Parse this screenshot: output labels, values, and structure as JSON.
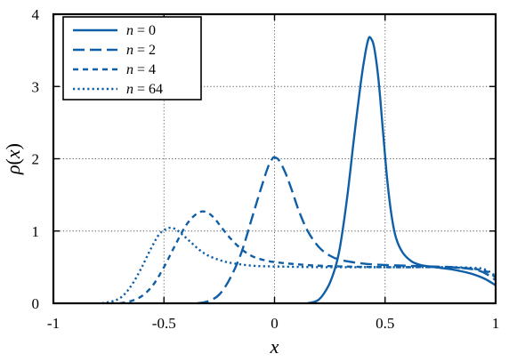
{
  "chart_data": {
    "type": "line",
    "title": "",
    "xlabel": "x",
    "ylabel_parts": {
      "rho": "ρ",
      "open": "(",
      "var": "x",
      "close": ")"
    },
    "xlim": [
      -1,
      1
    ],
    "ylim": [
      0,
      4
    ],
    "x_ticks": [
      -1,
      -0.5,
      0,
      0.5,
      1
    ],
    "x_tick_labels": [
      "-1",
      "-0.5",
      "0",
      "0.5",
      "1"
    ],
    "y_ticks": [
      0,
      1,
      2,
      3,
      4
    ],
    "y_tick_labels": [
      "0",
      "1",
      "2",
      "3",
      "4"
    ],
    "grid": true,
    "legend_position": "top-left",
    "line_color": "#0f5fa8",
    "series": [
      {
        "name": "n = 0",
        "legend_var": "n",
        "legend_eq": " = 0",
        "style": "solid",
        "points": [
          [
            0.15,
            0.0
          ],
          [
            0.18,
            0.02
          ],
          [
            0.2,
            0.05
          ],
          [
            0.22,
            0.12
          ],
          [
            0.25,
            0.28
          ],
          [
            0.28,
            0.55
          ],
          [
            0.3,
            0.85
          ],
          [
            0.33,
            1.5
          ],
          [
            0.36,
            2.3
          ],
          [
            0.39,
            3.05
          ],
          [
            0.41,
            3.45
          ],
          [
            0.425,
            3.66
          ],
          [
            0.435,
            3.67
          ],
          [
            0.45,
            3.55
          ],
          [
            0.47,
            3.1
          ],
          [
            0.49,
            2.4
          ],
          [
            0.51,
            1.7
          ],
          [
            0.53,
            1.2
          ],
          [
            0.55,
            0.9
          ],
          [
            0.58,
            0.7
          ],
          [
            0.62,
            0.58
          ],
          [
            0.66,
            0.53
          ],
          [
            0.7,
            0.51
          ],
          [
            0.75,
            0.49
          ],
          [
            0.8,
            0.47
          ],
          [
            0.85,
            0.44
          ],
          [
            0.9,
            0.4
          ],
          [
            0.95,
            0.34
          ],
          [
            1.0,
            0.25
          ]
        ]
      },
      {
        "name": "n = 2",
        "legend_var": "n",
        "legend_eq": " = 2",
        "style": "dashed",
        "points": [
          [
            -0.35,
            0.0
          ],
          [
            -0.3,
            0.03
          ],
          [
            -0.25,
            0.12
          ],
          [
            -0.2,
            0.35
          ],
          [
            -0.15,
            0.7
          ],
          [
            -0.1,
            1.2
          ],
          [
            -0.06,
            1.6
          ],
          [
            -0.03,
            1.88
          ],
          [
            -0.01,
            2.0
          ],
          [
            0.0,
            2.02
          ],
          [
            0.02,
            1.98
          ],
          [
            0.05,
            1.8
          ],
          [
            0.08,
            1.55
          ],
          [
            0.11,
            1.28
          ],
          [
            0.15,
            1.0
          ],
          [
            0.2,
            0.78
          ],
          [
            0.25,
            0.66
          ],
          [
            0.3,
            0.6
          ],
          [
            0.4,
            0.55
          ],
          [
            0.5,
            0.53
          ],
          [
            0.6,
            0.52
          ],
          [
            0.7,
            0.51
          ],
          [
            0.8,
            0.5
          ],
          [
            0.9,
            0.47
          ],
          [
            0.95,
            0.42
          ],
          [
            1.0,
            0.32
          ]
        ]
      },
      {
        "name": "n = 4",
        "legend_var": "n",
        "legend_eq": " = 4",
        "style": "short-dashed",
        "points": [
          [
            -0.7,
            0.0
          ],
          [
            -0.65,
            0.03
          ],
          [
            -0.6,
            0.1
          ],
          [
            -0.55,
            0.25
          ],
          [
            -0.5,
            0.5
          ],
          [
            -0.45,
            0.8
          ],
          [
            -0.4,
            1.08
          ],
          [
            -0.36,
            1.22
          ],
          [
            -0.33,
            1.27
          ],
          [
            -0.3,
            1.25
          ],
          [
            -0.27,
            1.17
          ],
          [
            -0.24,
            1.05
          ],
          [
            -0.2,
            0.9
          ],
          [
            -0.15,
            0.75
          ],
          [
            -0.1,
            0.65
          ],
          [
            -0.05,
            0.6
          ],
          [
            0.0,
            0.57
          ],
          [
            0.1,
            0.54
          ],
          [
            0.2,
            0.52
          ],
          [
            0.3,
            0.51
          ],
          [
            0.5,
            0.5
          ],
          [
            0.7,
            0.5
          ],
          [
            0.85,
            0.49
          ],
          [
            0.95,
            0.45
          ],
          [
            1.0,
            0.36
          ]
        ]
      },
      {
        "name": "n = 64",
        "legend_var": "n",
        "legend_eq": " = 64",
        "style": "dotted",
        "points": [
          [
            -0.78,
            0.0
          ],
          [
            -0.72,
            0.04
          ],
          [
            -0.68,
            0.12
          ],
          [
            -0.64,
            0.28
          ],
          [
            -0.6,
            0.5
          ],
          [
            -0.56,
            0.75
          ],
          [
            -0.52,
            0.96
          ],
          [
            -0.48,
            1.04
          ],
          [
            -0.45,
            1.03
          ],
          [
            -0.42,
            0.96
          ],
          [
            -0.38,
            0.85
          ],
          [
            -0.34,
            0.74
          ],
          [
            -0.3,
            0.66
          ],
          [
            -0.25,
            0.6
          ],
          [
            -0.2,
            0.56
          ],
          [
            -0.1,
            0.52
          ],
          [
            0.0,
            0.51
          ],
          [
            0.2,
            0.5
          ],
          [
            0.4,
            0.5
          ],
          [
            0.6,
            0.5
          ],
          [
            0.8,
            0.5
          ],
          [
            0.9,
            0.49
          ],
          [
            0.95,
            0.47
          ],
          [
            1.0,
            0.38
          ]
        ]
      }
    ]
  }
}
